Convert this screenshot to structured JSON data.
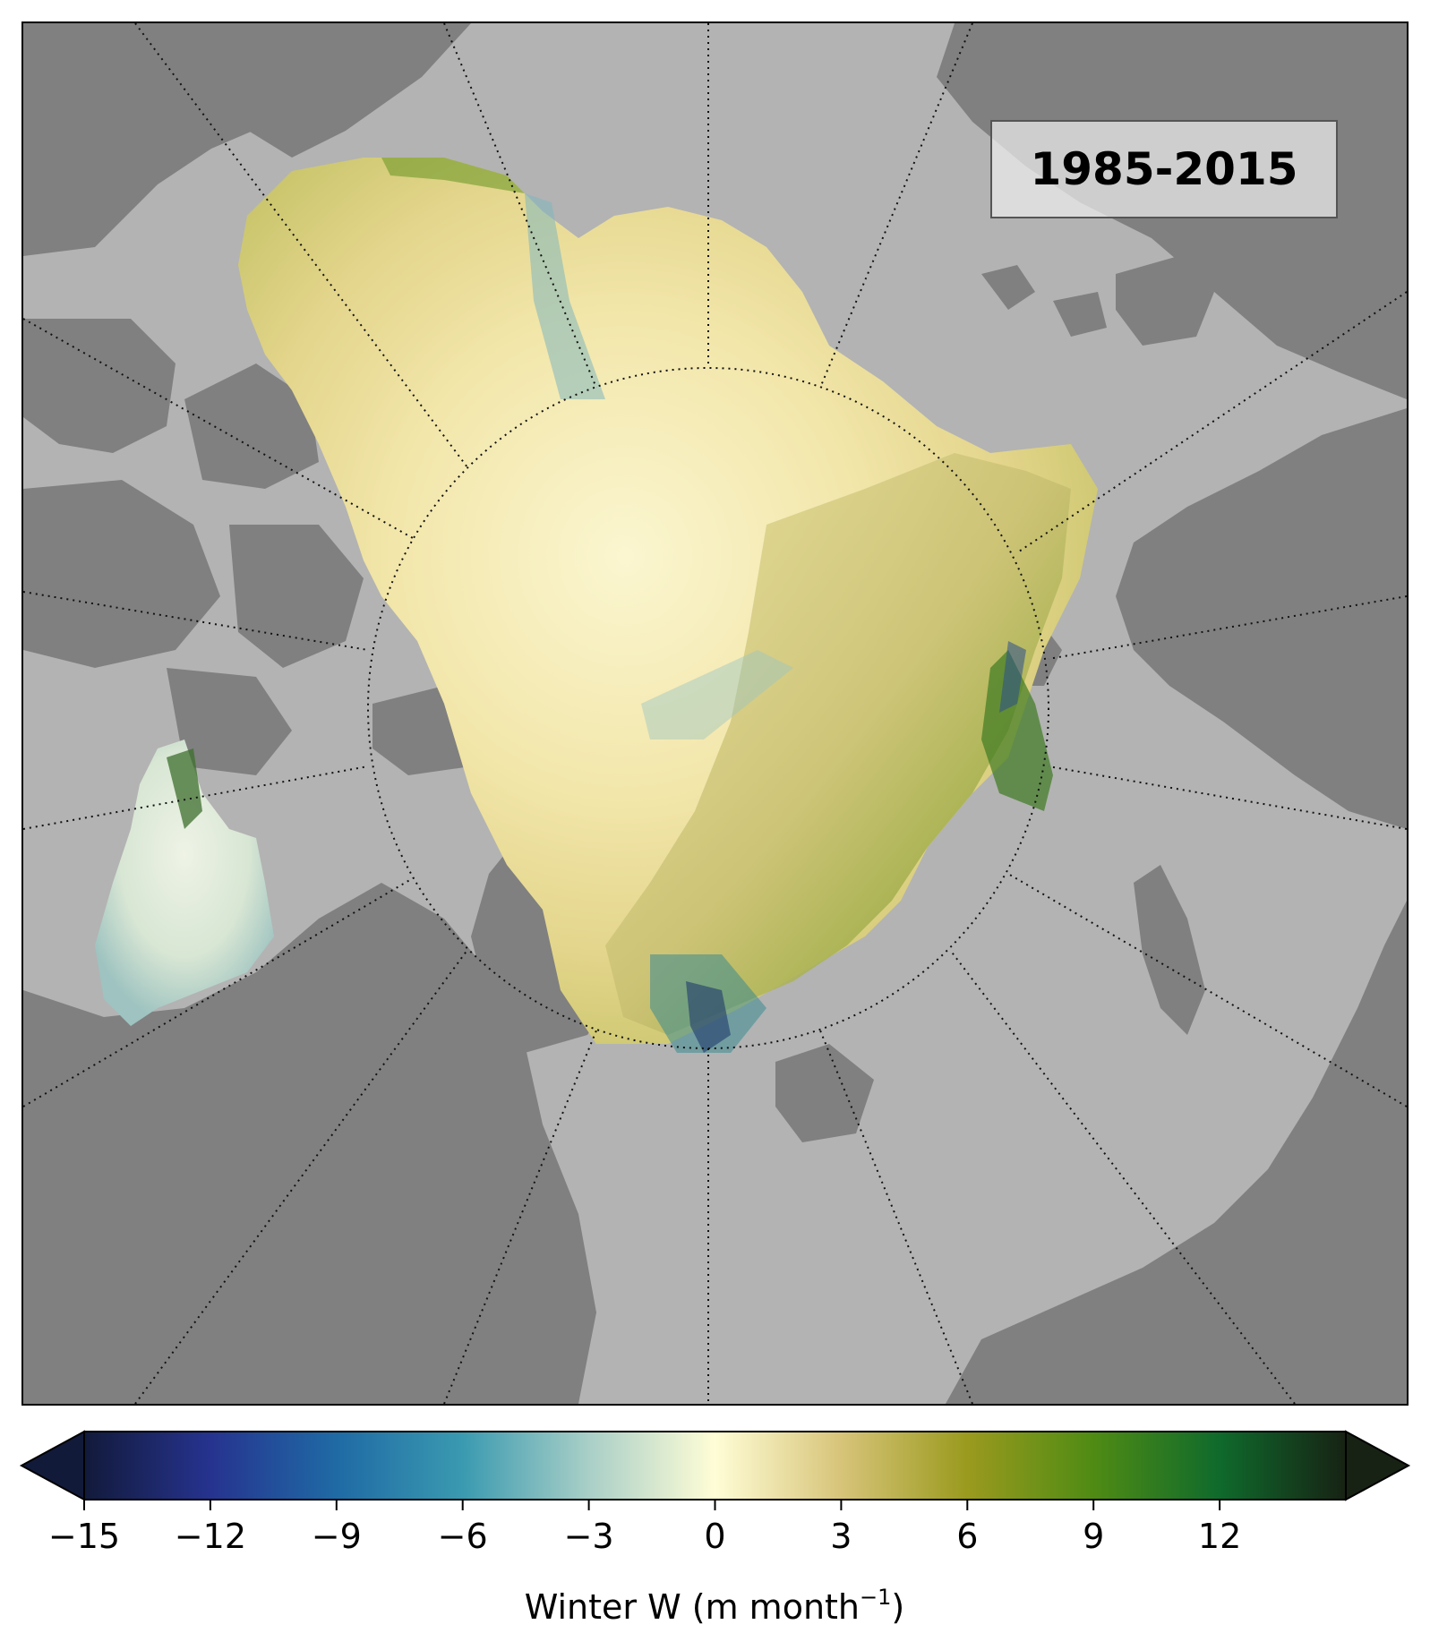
{
  "period_label": "1985-2015",
  "map": {
    "projection": "north-polar-stereographic",
    "colors": {
      "ocean": "#b3b3b3",
      "land": "#808080",
      "graticule": "#111111"
    }
  },
  "colorbar": {
    "label_prefix": "Winter W (m month",
    "label_exponent": "−1",
    "label_suffix": ")",
    "min": -15,
    "max": 15,
    "extend": "both",
    "ticks": [
      -15,
      -12,
      -9,
      -6,
      -3,
      0,
      3,
      6,
      9,
      12
    ],
    "tick_labels": [
      "−15",
      "−12",
      "−9",
      "−6",
      "−3",
      "0",
      "3",
      "6",
      "9",
      "12"
    ],
    "colormap": "blue-white-yellow-green",
    "colormap_stops": [
      "#121a3a",
      "#26338f",
      "#1f6aa5",
      "#3a9ab0",
      "#a9cfc7",
      "#fffdd6",
      "#d7c479",
      "#9a9a1e",
      "#4f8b14",
      "#0f6a2c",
      "#172214"
    ]
  }
}
